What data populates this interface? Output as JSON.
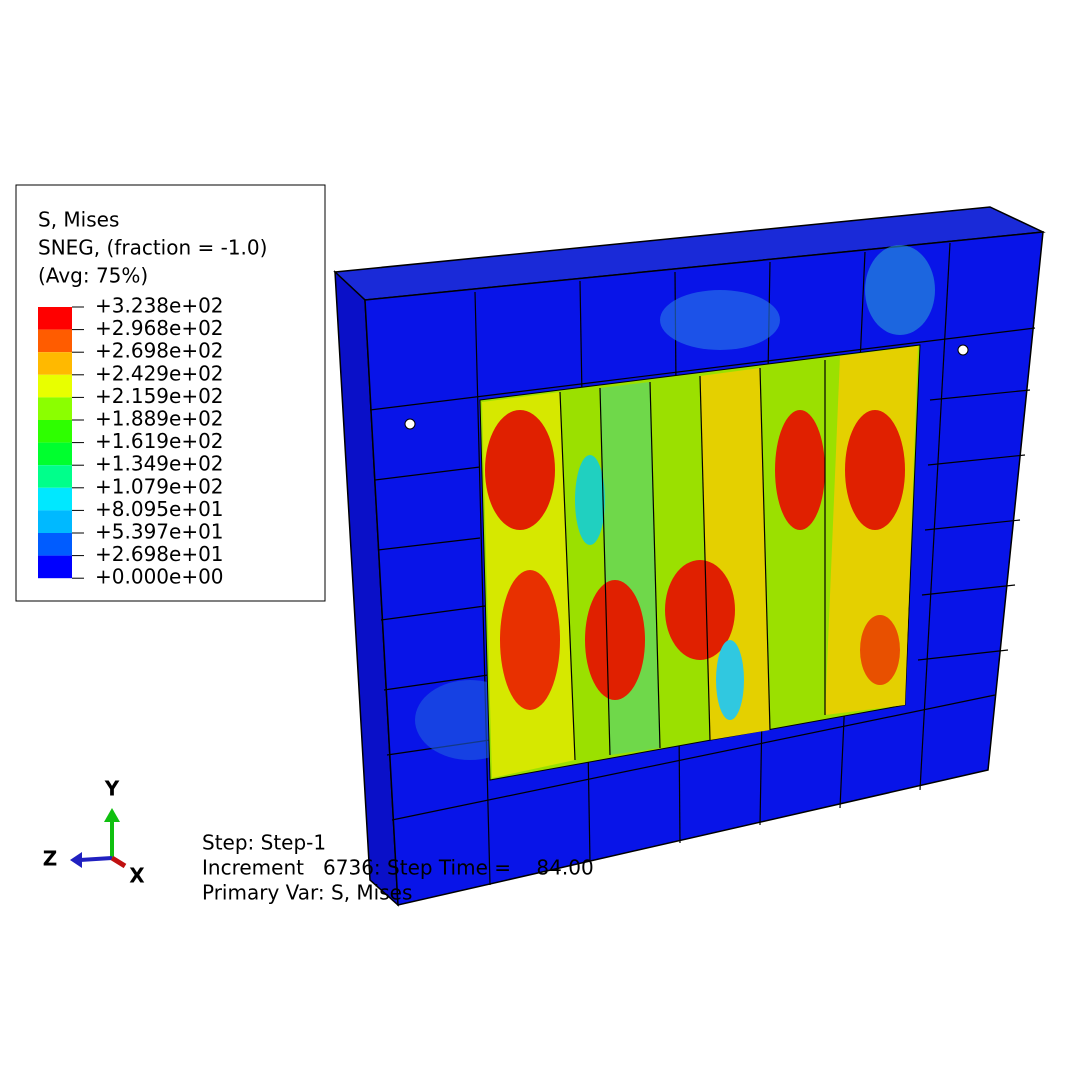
{
  "legend": {
    "lines": [
      "S, Mises",
      "SNEG, (fraction = -1.0)",
      "(Avg: 75%)"
    ],
    "labels": [
      "+3.238e+02",
      "+2.968e+02",
      "+2.698e+02",
      "+2.429e+02",
      "+2.159e+02",
      "+1.889e+02",
      "+1.619e+02",
      "+1.349e+02",
      "+1.079e+02",
      "+8.095e+01",
      "+5.397e+01",
      "+2.698e+01",
      "+0.000e+00"
    ],
    "colors": [
      "#ff0000",
      "#ff5c00",
      "#ffb900",
      "#e8ff00",
      "#8bff00",
      "#2eff00",
      "#00ff2e",
      "#00ff8b",
      "#00e8ff",
      "#00b9ff",
      "#005cff",
      "#0000ff"
    ]
  },
  "triad": {
    "y": "Y",
    "z": "Z",
    "x": "X"
  },
  "status": [
    "Step: Step-1",
    "Increment   6736: Step Time =    84.00",
    "Primary Var: S, Mises"
  ]
}
